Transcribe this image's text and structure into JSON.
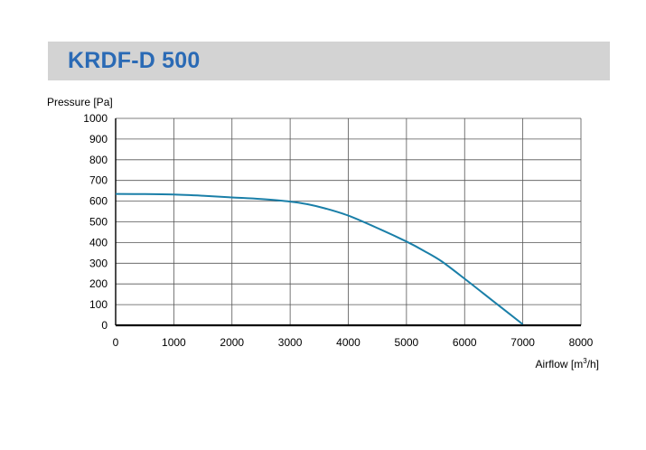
{
  "title": "KRDF-D 500",
  "colors": {
    "title_background": "#d3d3d3",
    "title_text": "#2a6ab5",
    "curve": "#1a7fa8",
    "grid": "#555555"
  },
  "chart_data": {
    "type": "line",
    "title": "KRDF-D 500",
    "xlabel": "Airflow [m",
    "xlabel_sup": "3",
    "xlabel_end": "/h]",
    "ylabel": "Pressure [Pa]",
    "xlim": [
      0,
      8000
    ],
    "ylim": [
      0,
      1000
    ],
    "x_ticks": [
      "0",
      "1000",
      "2000",
      "3000",
      "4000",
      "5000",
      "6000",
      "7000",
      "8000"
    ],
    "y_ticks": [
      "0",
      "100",
      "200",
      "300",
      "400",
      "500",
      "600",
      "700",
      "800",
      "900",
      "1000"
    ],
    "grid": true,
    "legend": "none",
    "series": [
      {
        "x": [
          0,
          500,
          1000,
          1500,
          2000,
          2500,
          3000,
          3300,
          3600,
          4000,
          4500,
          5000,
          5300,
          5600,
          6000,
          6500,
          7000
        ],
        "y": [
          635,
          634,
          632,
          626,
          618,
          610,
          598,
          585,
          565,
          530,
          470,
          405,
          360,
          310,
          225,
          115,
          5
        ]
      }
    ]
  }
}
